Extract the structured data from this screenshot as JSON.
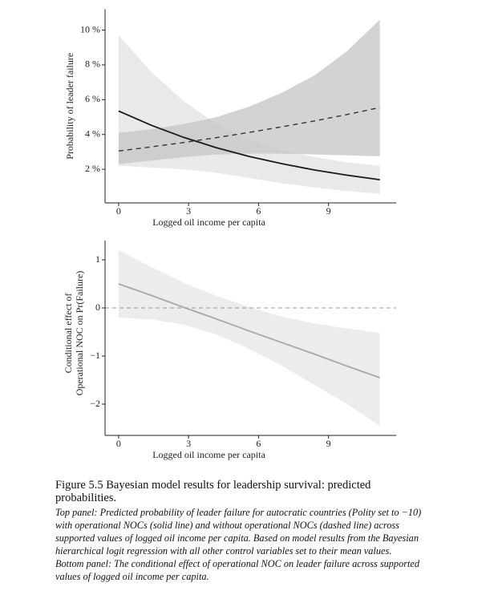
{
  "chart_data": [
    {
      "type": "line",
      "xlabel": "Logged oil income per capita",
      "ylabel": [
        "Probability of leader failure"
      ],
      "x": [
        0,
        1.4,
        2.8,
        4.2,
        5.6,
        7,
        8.4,
        9.8,
        11.2
      ],
      "xlim": [
        -0.58,
        11.9
      ],
      "xticks": [
        0,
        3,
        6,
        9
      ],
      "ylim": [
        0.07,
        11.2
      ],
      "yticks": [
        {
          "value": 2,
          "label": "2 %"
        },
        {
          "value": 4,
          "label": "4 %"
        },
        {
          "value": 6,
          "label": "6 %"
        },
        {
          "value": 8,
          "label": "8 %"
        },
        {
          "value": 10,
          "label": "10 %"
        }
      ],
      "series": [
        {
          "line_style": "solid",
          "color": "#1a1a1a",
          "band_color": "#e2e2e2",
          "values": [
            5.35,
            4.53,
            3.83,
            3.24,
            2.74,
            2.32,
            1.96,
            1.66,
            1.4
          ],
          "upper": [
            9.7,
            7.6,
            5.9,
            4.6,
            3.7,
            3.1,
            2.7,
            2.4,
            2.2
          ],
          "lower": [
            2.2,
            2.1,
            2.0,
            1.8,
            1.5,
            1.2,
            0.95,
            0.75,
            0.6
          ]
        },
        {
          "line_style": "dashed",
          "color": "#333333",
          "band_color": "#c4c4c4",
          "values": [
            3.05,
            3.29,
            3.54,
            3.82,
            4.12,
            4.44,
            4.78,
            5.15,
            5.55
          ],
          "upper": [
            4.1,
            4.3,
            4.6,
            5.0,
            5.6,
            6.4,
            7.4,
            8.8,
            10.6
          ],
          "lower": [
            2.3,
            2.5,
            2.7,
            2.85,
            2.9,
            2.9,
            2.85,
            2.8,
            2.75
          ]
        }
      ]
    },
    {
      "type": "line",
      "xlabel": "Logged oil income per capita",
      "ylabel": [
        "Conditional effect of",
        "Operational NOC on Pr(Failure)"
      ],
      "x": [
        0,
        1.4,
        2.8,
        4.2,
        5.6,
        7,
        8.4,
        9.8,
        11.2
      ],
      "xlim": [
        -0.58,
        11.9
      ],
      "xticks": [
        0,
        3,
        6,
        9
      ],
      "ylim": [
        -2.65,
        1.4
      ],
      "yticks": [
        {
          "value": -2,
          "label": "−2"
        },
        {
          "value": -1,
          "label": "−1"
        },
        0,
        1
      ],
      "hline": 0,
      "series": [
        {
          "line_style": "solid",
          "color": "#a8a8a8",
          "band_color": "#e6e6e6",
          "values": [
            0.5,
            0.26,
            0.01,
            -0.23,
            -0.48,
            -0.72,
            -0.96,
            -1.21,
            -1.45
          ],
          "upper": [
            1.2,
            0.85,
            0.52,
            0.25,
            0.02,
            -0.18,
            -0.32,
            -0.43,
            -0.52
          ],
          "lower": [
            -0.2,
            -0.24,
            -0.35,
            -0.55,
            -0.85,
            -1.2,
            -1.6,
            -2.0,
            -2.45
          ]
        }
      ]
    }
  ],
  "caption": {
    "title": "Figure 5.5 Bayesian model results for leadership survival: predicted probabilities.",
    "paragraphs": [
      "Top panel: Predicted probability of leader failure for autocratic countries (Polity set to −10) with operational NOCs (solid line) and without operational NOCs (dashed line) across supported values of logged oil income per capita. Based on model results from the Bayesian hierarchical logit regression with all other control variables set to their mean values.",
      "Bottom panel: The conditional effect of operational NOC on leader failure across supported values of logged oil income per capita."
    ]
  }
}
